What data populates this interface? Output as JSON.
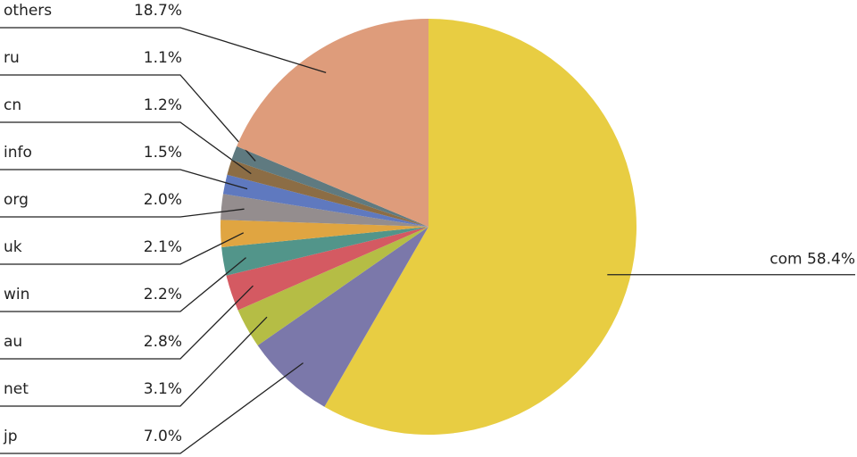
{
  "chart_data": {
    "type": "pie",
    "categories": [
      "com",
      "jp",
      "net",
      "au",
      "win",
      "uk",
      "org",
      "info",
      "cn",
      "ru",
      "others"
    ],
    "values": [
      58.4,
      7.0,
      3.1,
      2.8,
      2.2,
      2.1,
      2.0,
      1.5,
      1.2,
      1.1,
      18.7
    ],
    "value_labels": [
      "58.4%",
      "7.0%",
      "3.1%",
      "2.8%",
      "2.2%",
      "2.1%",
      "2.0%",
      "1.5%",
      "1.2%",
      "1.1%",
      "18.7%"
    ],
    "colors": [
      "#e8cd42",
      "#7b78aa",
      "#b5bd45",
      "#d45a62",
      "#52958a",
      "#e0a541",
      "#948d8e",
      "#5f79bf",
      "#8c6d45",
      "#5f7a80",
      "#de9c7b"
    ]
  }
}
